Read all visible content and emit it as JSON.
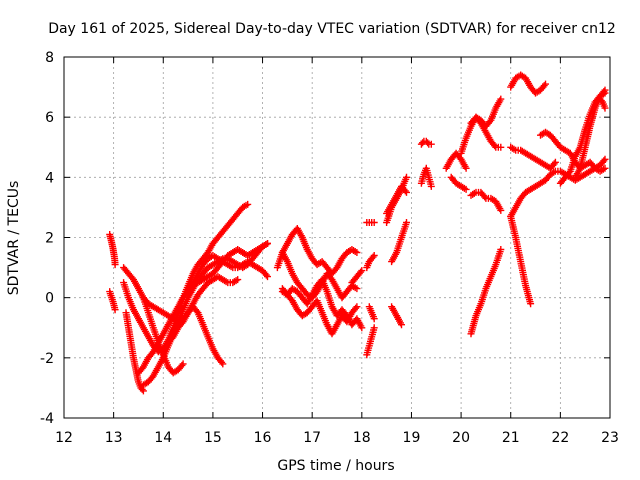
{
  "chart_data": {
    "type": "scatter",
    "title": "Day 161 of 2025, Sidereal Day-to-day VTEC variation (SDTVAR) for receiver cn12",
    "xlabel": "GPS time / hours",
    "ylabel": "SDTVAR / TECUs",
    "xlim": [
      12,
      23
    ],
    "ylim": [
      -4,
      8
    ],
    "xticks": [
      "12",
      "13",
      "14",
      "15",
      "16",
      "17",
      "18",
      "19",
      "20",
      "21",
      "22",
      "23"
    ],
    "yticks": [
      "-4",
      "-2",
      "0",
      "2",
      "4",
      "6",
      "8"
    ],
    "grid": true,
    "marker": "+",
    "color": "#ff0000",
    "series": [
      {
        "x": [
          12.92,
          12.95,
          12.98,
          13.0,
          13.02,
          13.03
        ],
        "y": [
          2.1,
          1.9,
          1.7,
          1.5,
          1.3,
          1.1
        ]
      },
      {
        "x": [
          12.92,
          12.96,
          13.0,
          13.03
        ],
        "y": [
          0.2,
          0.0,
          -0.2,
          -0.4
        ]
      },
      {
        "x": [
          13.2,
          13.3,
          13.4,
          13.5,
          13.6,
          13.7,
          13.8,
          13.9,
          14.0,
          14.1,
          14.2,
          14.3,
          14.4
        ],
        "y": [
          1.0,
          0.8,
          0.6,
          0.3,
          0.0,
          -0.5,
          -1.0,
          -1.5,
          -1.9,
          -2.3,
          -2.5,
          -2.4,
          -2.2
        ]
      },
      {
        "x": [
          13.2,
          13.3,
          13.4,
          13.5,
          13.6,
          13.7,
          13.8,
          13.9,
          14.0,
          14.1,
          14.2,
          14.3,
          14.4,
          14.5,
          14.6,
          14.7,
          14.8,
          14.9,
          15.0,
          15.1,
          15.2,
          15.3,
          15.4,
          15.5,
          15.6,
          15.7
        ],
        "y": [
          0.5,
          0.0,
          -0.4,
          -0.7,
          -1.0,
          -1.3,
          -1.6,
          -1.8,
          -1.7,
          -1.4,
          -1.0,
          -0.5,
          0.0,
          0.4,
          0.8,
          1.1,
          1.3,
          1.5,
          1.8,
          2.0,
          2.2,
          2.4,
          2.6,
          2.8,
          3.0,
          3.1
        ]
      },
      {
        "x": [
          13.25,
          13.3,
          13.35,
          13.4,
          13.45,
          13.5,
          13.55,
          13.6
        ],
        "y": [
          -0.5,
          -1.0,
          -1.5,
          -2.0,
          -2.4,
          -2.8,
          -3.0,
          -3.1
        ]
      },
      {
        "x": [
          13.6,
          13.7,
          13.8,
          13.9,
          14.0,
          14.1,
          14.2,
          14.3,
          14.4,
          14.5,
          14.6,
          14.7,
          14.8,
          14.9,
          15.0,
          15.1,
          15.2,
          15.3,
          15.4,
          15.5,
          15.6,
          15.7,
          15.8,
          15.9,
          16.0,
          16.1
        ],
        "y": [
          -2.9,
          -2.8,
          -2.6,
          -2.3,
          -2.0,
          -1.6,
          -1.2,
          -0.8,
          -0.4,
          0.0,
          0.3,
          0.6,
          0.8,
          1.0,
          1.1,
          1.2,
          1.3,
          1.3,
          1.2,
          1.1,
          1.0,
          1.1,
          1.3,
          1.5,
          1.7,
          1.8
        ]
      },
      {
        "x": [
          13.6,
          13.7,
          13.8,
          13.9,
          14.0,
          14.1,
          14.2,
          14.3,
          14.4,
          14.5,
          14.6,
          14.7,
          14.8,
          14.9,
          15.0,
          15.1,
          15.2
        ],
        "y": [
          0.0,
          -0.2,
          -0.3,
          -0.4,
          -0.5,
          -0.6,
          -0.7,
          -0.8,
          -0.7,
          -0.5,
          -0.3,
          -0.5,
          -0.9,
          -1.3,
          -1.7,
          -2.0,
          -2.2
        ]
      },
      {
        "x": [
          13.5,
          13.6,
          13.7,
          13.8,
          13.9,
          14.0,
          14.1,
          14.2,
          14.3,
          14.4,
          14.5,
          14.6,
          14.7,
          14.8,
          14.9,
          15.0,
          15.1,
          15.2,
          15.3,
          15.4,
          15.5,
          15.6,
          15.7,
          15.8,
          15.9,
          16.0,
          16.1
        ],
        "y": [
          -2.5,
          -2.3,
          -2.0,
          -1.8,
          -1.5,
          -1.2,
          -0.9,
          -0.6,
          -0.3,
          0.0,
          0.2,
          0.4,
          0.5,
          0.6,
          0.7,
          0.8,
          1.0,
          1.2,
          1.4,
          1.5,
          1.6,
          1.5,
          1.4,
          1.5,
          1.6,
          1.7,
          1.8
        ]
      },
      {
        "x": [
          14.5,
          14.6,
          14.7,
          14.8,
          14.9,
          15.0,
          15.1,
          15.2,
          15.3,
          15.4,
          15.5,
          15.6,
          15.7,
          15.8,
          15.9,
          16.0,
          16.1
        ],
        "y": [
          0.2,
          0.5,
          0.8,
          1.1,
          1.3,
          1.4,
          1.3,
          1.2,
          1.1,
          1.0,
          1.0,
          1.1,
          1.2,
          1.1,
          1.0,
          0.9,
          0.7
        ]
      },
      {
        "x": [
          14.0,
          14.1,
          14.2,
          14.3,
          14.4,
          14.5,
          14.6,
          14.7,
          14.8,
          14.9,
          15.0,
          15.1,
          15.2,
          15.3,
          15.4,
          15.5
        ],
        "y": [
          -1.8,
          -1.5,
          -1.3,
          -1.0,
          -0.8,
          -0.5,
          -0.2,
          0.1,
          0.3,
          0.5,
          0.6,
          0.7,
          0.6,
          0.5,
          0.5,
          0.6
        ]
      },
      {
        "x": [
          16.3,
          16.4,
          16.5,
          16.6,
          16.7,
          16.8,
          16.9,
          17.0,
          17.1,
          17.2,
          17.3,
          17.4,
          17.5,
          17.6,
          17.7,
          17.8,
          17.9
        ],
        "y": [
          1.0,
          1.5,
          1.8,
          2.1,
          2.3,
          2.0,
          1.6,
          1.3,
          1.1,
          1.2,
          1.0,
          0.8,
          1.0,
          1.3,
          1.5,
          1.6,
          1.5
        ]
      },
      {
        "x": [
          16.4,
          16.5,
          16.6,
          16.7,
          16.8,
          16.9,
          17.0,
          17.1,
          17.2,
          17.3,
          17.4,
          17.5,
          17.6,
          17.7,
          17.8,
          17.9
        ],
        "y": [
          1.5,
          1.2,
          0.8,
          0.5,
          0.3,
          0.1,
          0.0,
          0.2,
          0.5,
          0.8,
          0.6,
          0.3,
          0.0,
          0.2,
          0.4,
          0.3
        ]
      },
      {
        "x": [
          16.4,
          16.5,
          16.6,
          16.7,
          16.8,
          16.9,
          17.0,
          17.1,
          17.2,
          17.3,
          17.4,
          17.5,
          17.6,
          17.7,
          17.8,
          17.9,
          18.0
        ],
        "y": [
          0.2,
          0.1,
          0.3,
          0.2,
          0.0,
          -0.2,
          0.1,
          0.4,
          0.6,
          0.2,
          -0.3,
          -0.6,
          -0.4,
          -0.6,
          -0.9,
          -0.7,
          -1.0
        ]
      },
      {
        "x": [
          16.4,
          16.5,
          16.6,
          16.7,
          16.8,
          16.9,
          17.0,
          17.1,
          17.2,
          17.3,
          17.4,
          17.5,
          17.6,
          17.7,
          17.8,
          17.9
        ],
        "y": [
          0.3,
          0.1,
          -0.1,
          -0.4,
          -0.6,
          -0.5,
          -0.3,
          -0.1,
          -0.5,
          -0.9,
          -1.2,
          -0.9,
          -0.6,
          -0.8,
          -0.5,
          -0.3
        ]
      },
      {
        "x": [
          17.8,
          17.85,
          17.9,
          17.95,
          18.0
        ],
        "y": [
          0.5,
          0.6,
          0.7,
          0.8,
          0.9
        ]
      },
      {
        "x": [
          18.1,
          18.15,
          18.2,
          18.25
        ],
        "y": [
          2.5,
          2.5,
          2.5,
          2.5
        ]
      },
      {
        "x": [
          18.1,
          18.15,
          18.2,
          18.25
        ],
        "y": [
          1.0,
          1.2,
          1.3,
          1.4
        ]
      },
      {
        "x": [
          18.1,
          18.15,
          18.2,
          18.25
        ],
        "y": [
          -1.9,
          -1.6,
          -1.3,
          -1.0
        ]
      },
      {
        "x": [
          18.15,
          18.2,
          18.25
        ],
        "y": [
          -0.3,
          -0.5,
          -0.7
        ]
      },
      {
        "x": [
          18.5,
          18.6,
          18.7,
          18.8,
          18.9
        ],
        "y": [
          2.5,
          3.0,
          3.3,
          3.6,
          4.0
        ]
      },
      {
        "x": [
          18.5,
          18.6,
          18.7,
          18.8,
          18.9
        ],
        "y": [
          2.8,
          3.1,
          3.4,
          3.7,
          3.5
        ]
      },
      {
        "x": [
          18.6,
          18.7,
          18.8,
          18.9
        ],
        "y": [
          1.2,
          1.5,
          2.0,
          2.5
        ]
      },
      {
        "x": [
          18.6,
          18.7,
          18.8
        ],
        "y": [
          -0.3,
          -0.6,
          -0.9
        ]
      },
      {
        "x": [
          19.2,
          19.25,
          19.3,
          19.35,
          19.4
        ],
        "y": [
          5.1,
          5.2,
          5.2,
          5.1,
          5.1
        ]
      },
      {
        "x": [
          19.2,
          19.25,
          19.3,
          19.35,
          19.4
        ],
        "y": [
          3.8,
          4.1,
          4.3,
          4.0,
          3.7
        ]
      },
      {
        "x": [
          19.7,
          19.8,
          19.9,
          20.0,
          20.1
        ],
        "y": [
          4.3,
          4.6,
          4.8,
          4.6,
          4.3
        ]
      },
      {
        "x": [
          19.8,
          19.9,
          20.0,
          20.1
        ],
        "y": [
          4.0,
          3.8,
          3.7,
          3.6
        ]
      },
      {
        "x": [
          20.0,
          20.1,
          20.2,
          20.3,
          20.4,
          20.5,
          20.6,
          20.7,
          20.8
        ],
        "y": [
          4.8,
          5.3,
          5.7,
          6.0,
          5.8,
          5.5,
          5.2,
          5.0,
          5.0
        ]
      },
      {
        "x": [
          20.2,
          20.3,
          20.4,
          20.5,
          20.6,
          20.7,
          20.8
        ],
        "y": [
          5.8,
          6.0,
          5.9,
          5.7,
          5.9,
          6.3,
          6.6
        ]
      },
      {
        "x": [
          20.2,
          20.3,
          20.4,
          20.5,
          20.6,
          20.7,
          20.8
        ],
        "y": [
          3.4,
          3.5,
          3.5,
          3.3,
          3.3,
          3.2,
          2.9
        ]
      },
      {
        "x": [
          20.2,
          20.3,
          20.4,
          20.5,
          20.6,
          20.7,
          20.8
        ],
        "y": [
          -1.2,
          -0.6,
          -0.2,
          0.3,
          0.7,
          1.1,
          1.6
        ]
      },
      {
        "x": [
          21.0,
          21.1,
          21.2,
          21.3,
          21.4,
          21.5,
          21.6,
          21.7
        ],
        "y": [
          7.0,
          7.3,
          7.4,
          7.3,
          7.0,
          6.8,
          6.9,
          7.1
        ]
      },
      {
        "x": [
          21.0,
          21.1,
          21.2,
          21.3,
          21.4,
          21.5,
          21.6,
          21.7,
          21.8,
          21.9
        ],
        "y": [
          5.0,
          4.9,
          4.9,
          4.8,
          4.7,
          4.6,
          4.5,
          4.4,
          4.3,
          4.5
        ]
      },
      {
        "x": [
          21.0,
          21.1,
          21.2,
          21.3,
          21.4
        ],
        "y": [
          2.7,
          2.0,
          1.2,
          0.4,
          -0.2
        ]
      },
      {
        "x": [
          21.0,
          21.1,
          21.2,
          21.3,
          21.4,
          21.5,
          21.6,
          21.7,
          21.8,
          21.9,
          22.0,
          22.1,
          22.2,
          22.3,
          22.4,
          22.5,
          22.6,
          22.7,
          22.8,
          22.9
        ],
        "y": [
          2.7,
          3.0,
          3.3,
          3.5,
          3.6,
          3.7,
          3.8,
          3.9,
          4.1,
          4.2,
          4.2,
          4.1,
          4.0,
          3.9,
          4.0,
          4.1,
          4.2,
          4.3,
          4.4,
          4.6
        ]
      },
      {
        "x": [
          21.6,
          21.7,
          21.8,
          21.9,
          22.0,
          22.1,
          22.2,
          22.3,
          22.4,
          22.5,
          22.6,
          22.7,
          22.8,
          22.9
        ],
        "y": [
          5.4,
          5.5,
          5.4,
          5.2,
          5.0,
          4.9,
          4.8,
          4.5,
          4.3,
          4.4,
          4.5,
          4.3,
          4.2,
          4.3
        ]
      },
      {
        "x": [
          22.0,
          22.1,
          22.2,
          22.3,
          22.4,
          22.5,
          22.6,
          22.7,
          22.8,
          22.9
        ],
        "y": [
          3.8,
          4.0,
          4.2,
          4.7,
          5.0,
          5.6,
          6.1,
          6.5,
          6.7,
          6.8
        ]
      },
      {
        "x": [
          22.3,
          22.4,
          22.5,
          22.6,
          22.7,
          22.8,
          22.9
        ],
        "y": [
          4.0,
          4.3,
          5.0,
          5.7,
          6.3,
          6.7,
          6.9
        ]
      },
      {
        "x": [
          22.8,
          22.85,
          22.9
        ],
        "y": [
          6.6,
          6.5,
          6.3
        ]
      }
    ]
  }
}
